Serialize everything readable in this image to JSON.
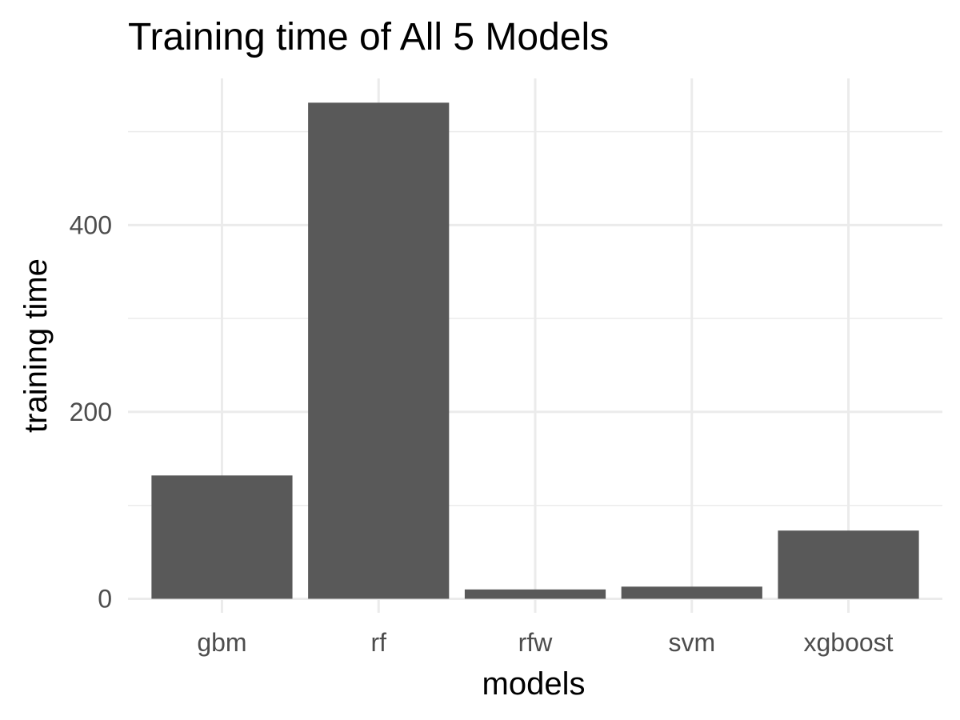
{
  "chart_data": {
    "type": "bar",
    "title": "Training time of All 5 Models",
    "xlabel": "models",
    "ylabel": "training time",
    "categories": [
      "gbm",
      "rf",
      "rfw",
      "svm",
      "xgboost"
    ],
    "values": [
      132,
      531,
      10,
      13,
      73
    ],
    "ylim": [
      -15,
      557
    ],
    "yticks": [
      0,
      200,
      400
    ],
    "yminor": [
      100,
      300,
      500
    ],
    "grid": true,
    "legend": "none",
    "bar_color": "#595959"
  }
}
